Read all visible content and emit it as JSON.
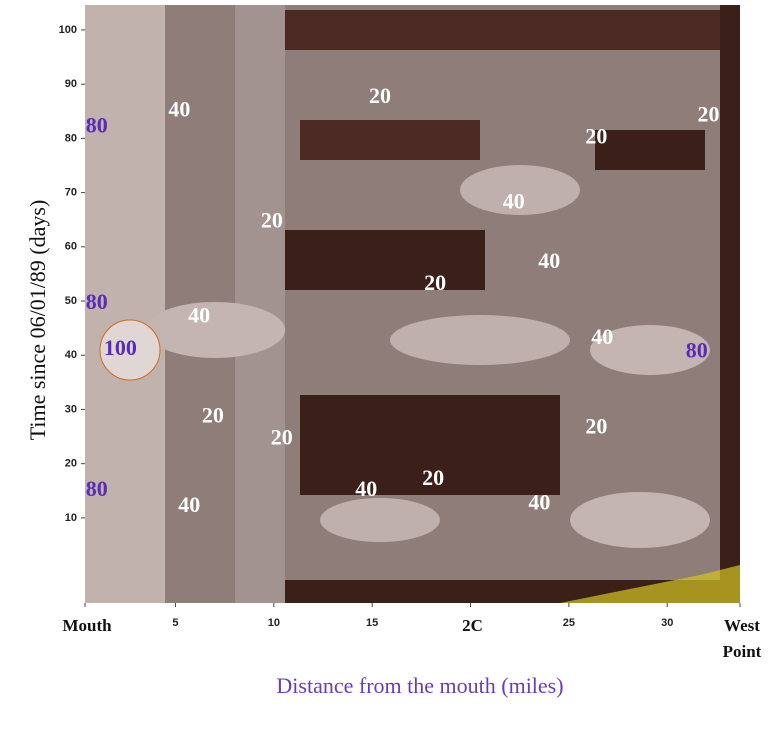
{
  "chart_data": {
    "type": "contour",
    "xlabel": "Distance from the mouth (miles)",
    "ylabel": "Time since 06/01/89 (days)",
    "xlim": [
      0.4,
      33.7
    ],
    "ylim": [
      -5.7,
      104.6
    ],
    "xticks": [
      {
        "value": 0.4,
        "label": "Mouth"
      },
      5,
      10,
      15,
      {
        "value": 20,
        "label": "2C"
      },
      25,
      30,
      {
        "value": 33.7,
        "label": "West Point"
      }
    ],
    "yticks": [
      10,
      20,
      30,
      40,
      50,
      60,
      70,
      80,
      90,
      100
    ],
    "annotations": [
      {
        "text": "80",
        "x": 1.0,
        "y": 82,
        "color": "#5a2bb5"
      },
      {
        "text": "40",
        "x": 5.2,
        "y": 85,
        "color": "#ffffff"
      },
      {
        "text": "20",
        "x": 15.4,
        "y": 87.5,
        "color": "#ffffff"
      },
      {
        "text": "20",
        "x": 26.4,
        "y": 80,
        "color": "#ffffff"
      },
      {
        "text": "20",
        "x": 32.1,
        "y": 84,
        "color": "#ffffff"
      },
      {
        "text": "20",
        "x": 9.9,
        "y": 64.5,
        "color": "#ffffff"
      },
      {
        "text": "40",
        "x": 22.2,
        "y": 68,
        "color": "#ffffff"
      },
      {
        "text": "40",
        "x": 24.0,
        "y": 57,
        "color": "#ffffff"
      },
      {
        "text": "20",
        "x": 18.2,
        "y": 53,
        "color": "#ffffff"
      },
      {
        "text": "80",
        "x": 1.0,
        "y": 49.5,
        "color": "#5a2bb5"
      },
      {
        "text": "40",
        "x": 6.2,
        "y": 47,
        "color": "#ffffff"
      },
      {
        "text": "100",
        "x": 2.2,
        "y": 41,
        "color": "#5a2bb5"
      },
      {
        "text": "40",
        "x": 26.7,
        "y": 43,
        "color": "#ffffff"
      },
      {
        "text": "80",
        "x": 31.5,
        "y": 40.5,
        "color": "#5a2bb5"
      },
      {
        "text": "20",
        "x": 6.9,
        "y": 28.5,
        "color": "#ffffff"
      },
      {
        "text": "20",
        "x": 10.4,
        "y": 24.5,
        "color": "#ffffff"
      },
      {
        "text": "20",
        "x": 26.4,
        "y": 26.5,
        "color": "#ffffff"
      },
      {
        "text": "20",
        "x": 18.1,
        "y": 17,
        "color": "#ffffff"
      },
      {
        "text": "40",
        "x": 14.7,
        "y": 15,
        "color": "#ffffff"
      },
      {
        "text": "40",
        "x": 23.5,
        "y": 12.5,
        "color": "#ffffff"
      },
      {
        "text": "80",
        "x": 1.0,
        "y": 15,
        "color": "#5a2bb5"
      },
      {
        "text": "40",
        "x": 5.7,
        "y": 12,
        "color": "#ffffff"
      }
    ]
  }
}
